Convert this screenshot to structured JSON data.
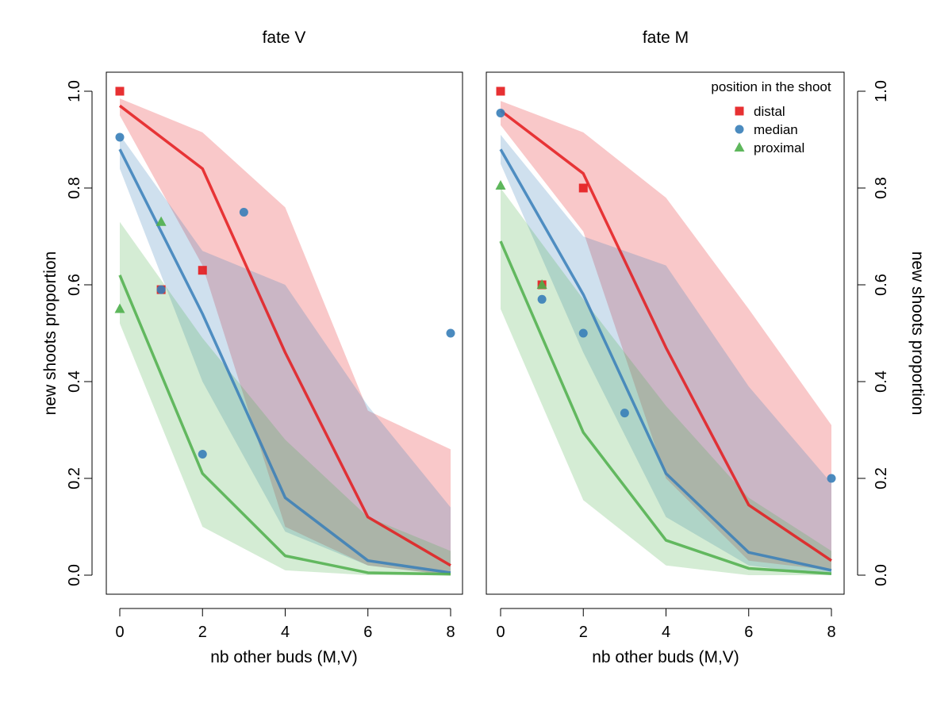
{
  "chart_data": [
    {
      "type": "line",
      "title": "fate V",
      "xlabel": "nb other buds (M,V)",
      "ylabel": "new shoots proportion",
      "ylabel_side": "left",
      "xlim": [
        0,
        8
      ],
      "ylim": [
        0,
        1
      ],
      "xticks": [
        0,
        2,
        4,
        6,
        8
      ],
      "yticks": [
        0.0,
        0.2,
        0.4,
        0.6,
        0.8,
        1.0
      ],
      "ytick_labels": [
        "0.0",
        "0.2",
        "0.4",
        "0.6",
        "0.8",
        "1.0"
      ],
      "grid": false,
      "series": [
        {
          "name": "distal",
          "color": "#e41a1c",
          "marker": "square",
          "x": [
            0,
            2,
            4,
            6,
            8
          ],
          "fit": [
            0.97,
            0.84,
            0.46,
            0.12,
            0.02
          ],
          "band_low": [
            0.95,
            0.64,
            0.1,
            0.02,
            0.0
          ],
          "band_high": [
            0.985,
            0.915,
            0.76,
            0.34,
            0.26
          ],
          "points": [
            [
              0,
              1.0
            ],
            [
              1,
              0.59
            ],
            [
              2,
              0.63
            ]
          ]
        },
        {
          "name": "median",
          "color": "#377eb8",
          "marker": "circle",
          "x": [
            0,
            2,
            4,
            6,
            8
          ],
          "fit": [
            0.88,
            0.54,
            0.16,
            0.03,
            0.005
          ],
          "band_low": [
            0.84,
            0.4,
            0.09,
            0.02,
            0.0
          ],
          "band_high": [
            0.91,
            0.67,
            0.6,
            0.35,
            0.14
          ],
          "points": [
            [
              0,
              0.905
            ],
            [
              1,
              0.59
            ],
            [
              2,
              0.25
            ],
            [
              3,
              0.75
            ],
            [
              8,
              0.5
            ]
          ]
        },
        {
          "name": "proximal",
          "color": "#4daf4a",
          "marker": "triangle",
          "x": [
            0,
            2,
            4,
            6,
            8
          ],
          "fit": [
            0.62,
            0.21,
            0.04,
            0.005,
            0.002
          ],
          "band_low": [
            0.52,
            0.1,
            0.01,
            0.0,
            0.0
          ],
          "band_high": [
            0.73,
            0.49,
            0.28,
            0.12,
            0.05
          ],
          "points": [
            [
              0,
              0.55
            ],
            [
              1,
              0.73
            ]
          ]
        }
      ]
    },
    {
      "type": "line",
      "title": "fate M",
      "xlabel": "nb other buds (M,V)",
      "ylabel": "new shoots proportion",
      "ylabel_side": "right",
      "xlim": [
        0,
        8
      ],
      "ylim": [
        0,
        1
      ],
      "xticks": [
        0,
        2,
        4,
        6,
        8
      ],
      "yticks": [
        0.0,
        0.2,
        0.4,
        0.6,
        0.8,
        1.0
      ],
      "ytick_labels": [
        "0.0",
        "0.2",
        "0.4",
        "0.6",
        "0.8",
        "1.0"
      ],
      "grid": false,
      "legend": {
        "title": "position in the shoot",
        "placement": "top-right",
        "entries": [
          "distal",
          "median",
          "proximal"
        ]
      },
      "series": [
        {
          "name": "distal",
          "color": "#e41a1c",
          "marker": "square",
          "x": [
            0,
            2,
            4,
            6,
            8
          ],
          "fit": [
            0.96,
            0.83,
            0.47,
            0.145,
            0.03
          ],
          "band_low": [
            0.93,
            0.71,
            0.2,
            0.03,
            0.01
          ],
          "band_high": [
            0.98,
            0.915,
            0.78,
            0.55,
            0.31
          ],
          "points": [
            [
              0,
              1.0
            ],
            [
              1,
              0.6
            ],
            [
              2,
              0.8
            ]
          ]
        },
        {
          "name": "median",
          "color": "#377eb8",
          "marker": "circle",
          "x": [
            0,
            2,
            4,
            6,
            8
          ],
          "fit": [
            0.88,
            0.58,
            0.21,
            0.047,
            0.01
          ],
          "band_low": [
            0.85,
            0.46,
            0.12,
            0.02,
            0.0
          ],
          "band_high": [
            0.91,
            0.7,
            0.64,
            0.39,
            0.19
          ],
          "points": [
            [
              0,
              0.955
            ],
            [
              1,
              0.57
            ],
            [
              2,
              0.5
            ],
            [
              3,
              0.335
            ],
            [
              8,
              0.2
            ]
          ]
        },
        {
          "name": "proximal",
          "color": "#4daf4a",
          "marker": "triangle",
          "x": [
            0,
            2,
            4,
            6,
            8
          ],
          "fit": [
            0.69,
            0.295,
            0.072,
            0.014,
            0.003
          ],
          "band_low": [
            0.55,
            0.155,
            0.02,
            0.0,
            0.0
          ],
          "band_high": [
            0.8,
            0.57,
            0.35,
            0.16,
            0.05
          ],
          "points": [
            [
              0,
              0.805
            ],
            [
              1,
              0.6
            ]
          ]
        }
      ]
    }
  ]
}
